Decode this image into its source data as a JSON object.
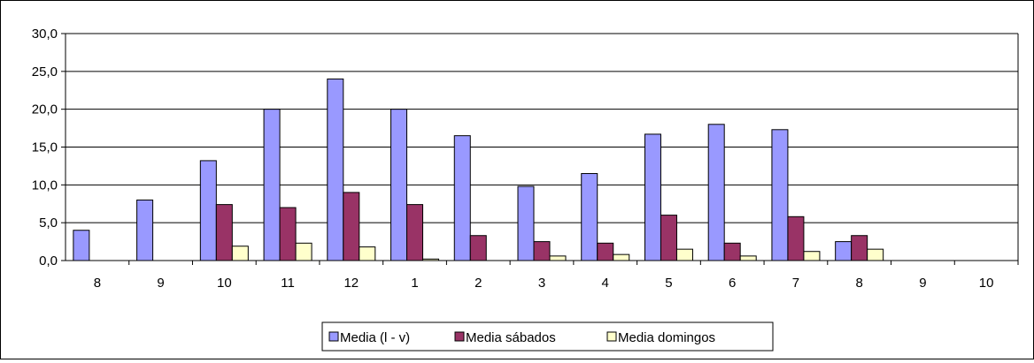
{
  "chart_data": {
    "type": "bar",
    "categories": [
      "8",
      "9",
      "10",
      "11",
      "12",
      "1",
      "2",
      "3",
      "4",
      "5",
      "6",
      "7",
      "8",
      "9",
      "10"
    ],
    "series": [
      {
        "name": "Media (l - v)",
        "color": "#9999FF",
        "values": [
          4.0,
          8.0,
          13.2,
          20.0,
          24.0,
          20.0,
          16.5,
          9.8,
          11.5,
          16.7,
          18.0,
          17.3,
          2.5,
          0,
          0
        ]
      },
      {
        "name": "Media sábados",
        "color": "#993366",
        "values": [
          0,
          0,
          7.4,
          7.0,
          9.0,
          7.4,
          3.3,
          2.5,
          2.3,
          6.0,
          2.3,
          5.8,
          3.3,
          0,
          0
        ]
      },
      {
        "name": "Media domingos",
        "color": "#FFFFCC",
        "values": [
          0,
          0,
          1.9,
          2.3,
          1.8,
          0.2,
          0,
          0.6,
          0.8,
          1.5,
          0.6,
          1.2,
          1.5,
          0,
          0
        ]
      }
    ],
    "ylim": [
      0,
      30
    ],
    "yticks": [
      "0,0",
      "5,0",
      "10,0",
      "15,0",
      "20,0",
      "25,0",
      "30,0"
    ],
    "grid": true,
    "legend_position": "bottom",
    "xlabel": "",
    "ylabel": "",
    "title": ""
  }
}
